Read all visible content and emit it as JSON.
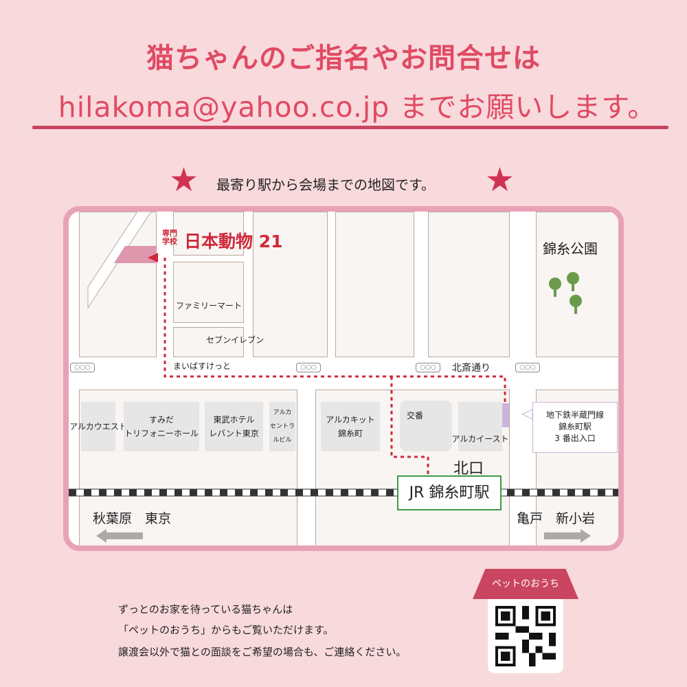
{
  "header": {
    "line1": "猫ちゃんのご指名やお問合せは",
    "line2": "hilakoma@yahoo.co.jp までお願いします。"
  },
  "map_intro": {
    "text": "最寄り駅から会場までの地図です。",
    "star_icon": "star-icon",
    "star_color": "#d03352"
  },
  "map": {
    "school_prefix": "専門学校",
    "school_name": "日本動物 21",
    "familymart": "ファミリーマート",
    "seven": "セブンイレブン",
    "maibasket": "まいばすけっと",
    "street": "北斎通り",
    "park": "錦糸公園",
    "traffic_light": "○○○",
    "buildings": [
      "アルカウエスト",
      "すみだ\nトリフォニーホール",
      "東武ホテル\nレバント東京",
      "アルカ\nセントラルビル",
      "アルカキット\n錦糸町",
      "交番",
      "アルカイースト"
    ],
    "subway": "地下鉄半蔵門線\n錦糸町駅\n3 番出入口",
    "north_exit": "北口",
    "station": "JR 錦糸町駅",
    "west_dir": "秋葉原　東京",
    "east_dir": "亀戸　新小岩",
    "route_color": "#d0283a"
  },
  "footer": {
    "lines": [
      "ずっとのお家を待っている猫ちゃんは",
      "「ペットのおうち」からもご覧いただけます。",
      "譲渡会以外で猫との面談をご希望の場合も、ご連絡ください。"
    ],
    "qr_label": "ペットのおうち"
  }
}
